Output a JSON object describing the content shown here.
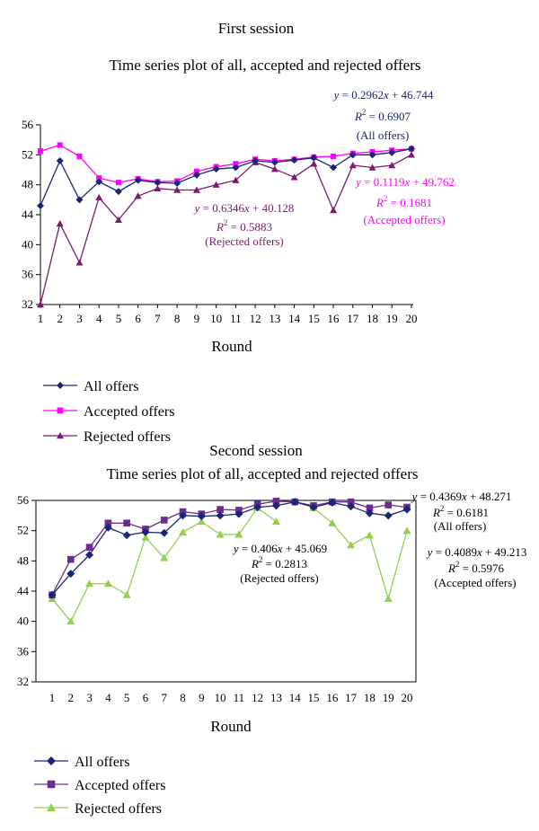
{
  "chart_data": [
    {
      "type": "line",
      "title": "First session",
      "subtitle": "Time series plot of all, accepted and rejected offers",
      "xlabel": "Round",
      "ylabel": "",
      "x": [
        1,
        2,
        3,
        4,
        5,
        6,
        7,
        8,
        9,
        10,
        11,
        12,
        13,
        14,
        15,
        16,
        17,
        18,
        19,
        20
      ],
      "ylim": [
        32,
        56
      ],
      "yticks": [
        32,
        36,
        40,
        44,
        48,
        52,
        56
      ],
      "grid": false,
      "legend_position": "bottom-left",
      "series": [
        {
          "name": "All offers",
          "color": "#1c2573",
          "marker": "diamond",
          "values": [
            45.2,
            51.2,
            46.0,
            48.4,
            47.1,
            48.6,
            48.3,
            48.2,
            49.3,
            50.1,
            50.3,
            51.2,
            51.0,
            51.3,
            51.6,
            50.3,
            52.0,
            52.0,
            52.3,
            52.8
          ]
        },
        {
          "name": "Accepted offers",
          "color": "#ff00ff",
          "marker": "square",
          "values": [
            52.5,
            53.3,
            51.8,
            48.9,
            48.3,
            48.8,
            48.4,
            48.5,
            49.8,
            50.4,
            50.8,
            51.4,
            51.2,
            51.4,
            51.7,
            51.8,
            52.2,
            52.4,
            52.6,
            52.8
          ]
        },
        {
          "name": "Rejected offers",
          "color": "#7b1a6e",
          "marker": "triangle",
          "values": [
            32.0,
            42.8,
            37.6,
            46.3,
            43.3,
            46.5,
            47.5,
            47.3,
            47.3,
            48.0,
            48.6,
            51.0,
            50.1,
            49.0,
            50.8,
            44.6,
            50.6,
            50.3,
            50.6,
            52.0
          ]
        }
      ],
      "annotations": [
        {
          "eq": "y = 0.2962x + 46.744",
          "eq_y": "y",
          "eq_rest": " = 0.2962",
          "eq_x": "x",
          "eq_tail": " + 46.744",
          "r2": "R",
          "r2_sup": "2",
          "r2_val": " = 0.6907",
          "label": "(All offers)",
          "color": "#1c2573"
        },
        {
          "eq": "y = 0.1119x + 49.762",
          "eq_y": "y",
          "eq_rest": " = 0.1119",
          "eq_x": "x",
          "eq_tail": " + 49.762",
          "r2": "R",
          "r2_sup": "2",
          "r2_val": " = 0.1681",
          "label": "(Accepted offers)",
          "color": "#ff00ff"
        },
        {
          "eq": "y = 0.6346x + 40.128",
          "eq_y": "y",
          "eq_rest": " = 0.6346",
          "eq_x": "x",
          "eq_tail": " + 40.128",
          "r2": "R",
          "r2_sup": "2",
          "r2_val": " = 0.5883",
          "label": "(Rejected offers)",
          "color": "#7b1a6e"
        }
      ]
    },
    {
      "type": "line",
      "title": "Second session",
      "subtitle": "Time series plot of all, accepted and rejected offers",
      "xlabel": "Round",
      "ylabel": "",
      "x": [
        1,
        2,
        3,
        4,
        5,
        6,
        7,
        8,
        9,
        10,
        11,
        12,
        13,
        14,
        15,
        16,
        17,
        18,
        19,
        20
      ],
      "ylim": [
        32,
        56
      ],
      "yticks": [
        32,
        36,
        40,
        44,
        48,
        52,
        56
      ],
      "grid": false,
      "legend_position": "bottom-left",
      "series": [
        {
          "name": "All offers",
          "color": "#1c2573",
          "marker": "diamond",
          "values": [
            43.5,
            46.3,
            48.8,
            52.4,
            51.4,
            51.8,
            51.7,
            54.0,
            53.9,
            54.0,
            54.2,
            55.1,
            55.3,
            55.8,
            55.1,
            55.7,
            55.2,
            54.3,
            54.0,
            54.8
          ]
        },
        {
          "name": "Accepted offers",
          "color": "#6b2e8f",
          "marker": "square",
          "values": [
            43.5,
            48.2,
            49.8,
            53.0,
            53.0,
            52.2,
            53.4,
            54.5,
            54.2,
            54.8,
            54.7,
            55.5,
            55.9,
            55.8,
            55.3,
            55.8,
            55.8,
            55.0,
            55.4,
            55.1
          ]
        },
        {
          "name": "Rejected offers",
          "color": "#92d050",
          "marker": "triangle",
          "values": [
            43.0,
            40.0,
            45.0,
            45.0,
            43.5,
            51.1,
            48.4,
            51.8,
            53.2,
            51.5,
            51.5,
            55.0,
            53.2,
            null,
            55.0,
            53.0,
            50.1,
            51.4,
            43.0,
            52.0
          ]
        }
      ],
      "annotations": [
        {
          "eq": "y = 0.4369x + 48.271",
          "eq_y": "y",
          "eq_rest": " = 0.4369",
          "eq_x": "x",
          "eq_tail": " + 48.271",
          "r2": "R",
          "r2_sup": "2",
          "r2_val": " = 0.6181",
          "label": "(All offers)",
          "color": "#000000"
        },
        {
          "eq": "y = 0.406x + 45.069",
          "eq_y": "y",
          "eq_rest": " = 0.406",
          "eq_x": "x",
          "eq_tail": " + 45.069",
          "r2": "R",
          "r2_sup": "2",
          "r2_val": " = 0.2813",
          "label": "(Rejected offers)",
          "color": "#000000"
        },
        {
          "eq": "y = 0.4089x + 49.213",
          "eq_y": "y",
          "eq_rest": " = 0.4089",
          "eq_x": "x",
          "eq_tail": " + 49.213",
          "r2": "R",
          "r2_sup": "2",
          "r2_val": " = 0.5976",
          "label": "(Accepted offers)",
          "color": "#000000"
        }
      ]
    }
  ]
}
